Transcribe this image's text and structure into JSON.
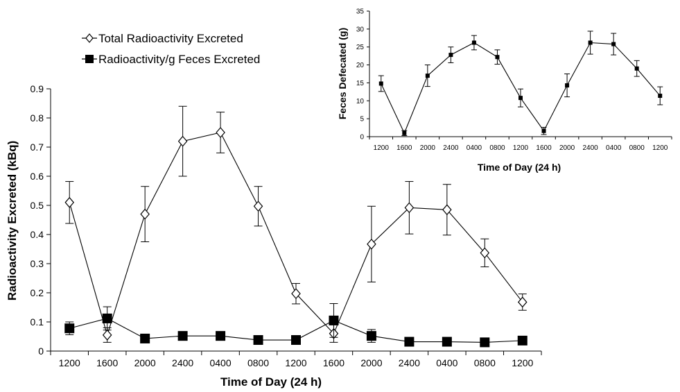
{
  "chart_data": [
    {
      "type": "line",
      "xlabel": "Time of Day (24 h)",
      "ylabel": "Radioactivity Excreted (kBq)",
      "categories": [
        "1200",
        "1600",
        "2000",
        "2400",
        "0400",
        "0800",
        "1200",
        "1600",
        "2000",
        "2400",
        "0400",
        "0800",
        "1200"
      ],
      "ylim": [
        0,
        0.9
      ],
      "yticks": [
        "0",
        "0.1",
        "0.2",
        "0.3",
        "0.4",
        "0.5",
        "0.6",
        "0.7",
        "0.8",
        "0.9"
      ],
      "grid": false,
      "legend_position": "top-left",
      "series": [
        {
          "name": "Total Radioactivity Excreted",
          "marker": "open-diamond",
          "values": [
            0.51,
            0.055,
            0.47,
            0.72,
            0.75,
            0.497,
            0.197,
            0.06,
            0.367,
            0.492,
            0.485,
            0.337,
            0.168
          ],
          "error": [
            0.072,
            0.025,
            0.095,
            0.12,
            0.07,
            0.068,
            0.035,
            0.03,
            0.13,
            0.09,
            0.087,
            0.048,
            0.028
          ]
        },
        {
          "name": "Radioactivity/g Feces Excreted",
          "marker": "filled-square",
          "values": [
            0.078,
            0.112,
            0.043,
            0.052,
            0.052,
            0.038,
            0.038,
            0.105,
            0.052,
            0.032,
            0.032,
            0.03,
            0.036
          ],
          "error": [
            0.022,
            0.04,
            0.006,
            0.006,
            0.006,
            0.005,
            0.005,
            0.058,
            0.022,
            0.005,
            0.005,
            0.005,
            0.005
          ]
        }
      ]
    },
    {
      "type": "line",
      "xlabel": "Time of Day (24 h)",
      "ylabel": "Feces Defecated (g)",
      "categories": [
        "1200",
        "1600",
        "2000",
        "2400",
        "0400",
        "0800",
        "1200",
        "1600",
        "2000",
        "2400",
        "0400",
        "0800",
        "1200"
      ],
      "ylim": [
        0,
        35
      ],
      "yticks": [
        "0",
        "5",
        "10",
        "15",
        "20",
        "25",
        "30",
        "35"
      ],
      "grid": false,
      "series": [
        {
          "marker": "filled-square-small",
          "values": [
            14.8,
            1.0,
            17.0,
            22.8,
            26.2,
            22.2,
            10.8,
            1.6,
            14.3,
            26.2,
            25.8,
            19.0,
            11.4
          ],
          "error": [
            2.2,
            0.7,
            3.0,
            2.2,
            2.0,
            2.0,
            2.5,
            1.0,
            3.2,
            3.2,
            3.0,
            2.2,
            2.5
          ]
        }
      ]
    }
  ]
}
